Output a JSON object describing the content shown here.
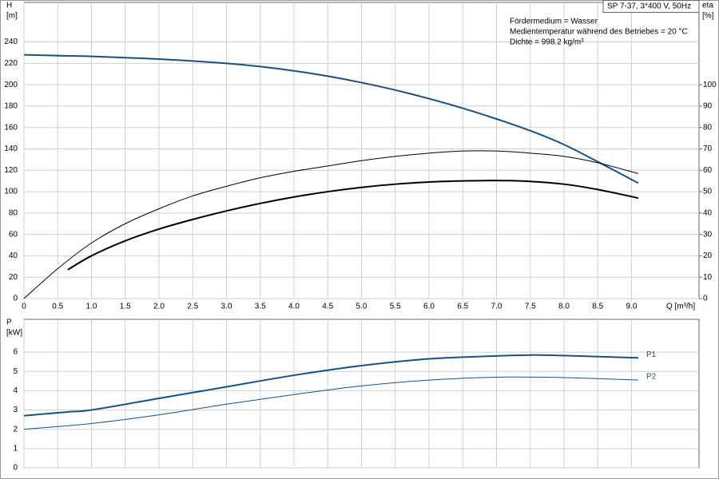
{
  "chart_data": [
    {
      "type": "line",
      "ylabel": [
        "H",
        "[m]"
      ],
      "y2label": [
        "eta",
        "[%]"
      ],
      "xlabel": "Q [m³/h]",
      "info": "SP 7-37, 3*400 V, 50Hz",
      "annotations": [
        "Fördermedium = Wasser",
        "Medientemperatur während des Betriebes = 20 °C",
        "Dichte = 998.2 kg/m³"
      ],
      "xlim": [
        0,
        10
      ],
      "ylim": [
        0,
        277
      ],
      "y2lim": [
        0,
        138.5
      ],
      "xticks": [
        0,
        0.5,
        {
          "value": 1,
          "label": "1.0"
        },
        1.5,
        {
          "value": 2,
          "label": "2.0"
        },
        2.5,
        {
          "value": 3,
          "label": "3.0"
        },
        3.5,
        {
          "value": 4,
          "label": "4.0"
        },
        4.5,
        {
          "value": 5,
          "label": "5.0"
        },
        5.5,
        {
          "value": 6,
          "label": "6.0"
        },
        6.5,
        {
          "value": 7,
          "label": "7.0"
        },
        7.5,
        {
          "value": 8,
          "label": "8.0"
        },
        8.5,
        {
          "value": 9,
          "label": "9.0"
        }
      ],
      "yticks": [
        0,
        20,
        40,
        60,
        80,
        100,
        120,
        140,
        160,
        180,
        200,
        220,
        240
      ],
      "y2ticks": [
        0,
        10,
        20,
        30,
        40,
        50,
        60,
        70,
        80,
        90,
        100
      ],
      "grid": true,
      "series": [
        {
          "color": "#1b4f80",
          "width": 2,
          "x": [
            0,
            0.65,
            1,
            2,
            3,
            3.5,
            4,
            4.5,
            5,
            5.5,
            6,
            6.5,
            7,
            7.5,
            8,
            8.5,
            9.1
          ],
          "values": [
            228,
            227,
            226.5,
            224,
            220,
            217,
            213,
            208,
            202,
            195,
            187,
            178,
            168,
            157,
            144,
            128,
            108
          ]
        },
        {
          "color": "#000000",
          "width": 1,
          "axis": "y2",
          "x": [
            0,
            0.5,
            1,
            1.5,
            2,
            2.5,
            3,
            3.5,
            4,
            4.5,
            5,
            5.5,
            6,
            6.5,
            7,
            7.5,
            8,
            8.5,
            9.1
          ],
          "values": [
            0,
            14,
            26,
            35,
            42,
            48,
            52.5,
            56.5,
            59.5,
            62,
            64.5,
            66.5,
            68,
            69,
            69,
            68,
            66.5,
            63.5,
            58.5
          ]
        },
        {
          "color": "#000000",
          "width": 2,
          "axis": "y2",
          "x": [
            0.65,
            1,
            1.5,
            2,
            2.5,
            3,
            3.5,
            4,
            4.5,
            5,
            5.5,
            6,
            6.5,
            7,
            7.5,
            8,
            8.5,
            9.1
          ],
          "values": [
            13.5,
            20,
            27,
            32.5,
            37,
            41,
            44.5,
            47.5,
            50,
            52,
            53.5,
            54.5,
            55,
            55.2,
            54.8,
            53.5,
            51,
            47
          ]
        }
      ]
    },
    {
      "type": "line",
      "ylabel": [
        "P",
        "[kW]"
      ],
      "xlim": [
        0,
        10
      ],
      "ylim": [
        0,
        7.7
      ],
      "xticks": [
        0,
        0.5,
        1,
        1.5,
        2,
        2.5,
        3,
        3.5,
        4,
        4.5,
        5,
        5.5,
        6,
        6.5,
        7,
        7.5,
        8,
        8.5,
        9
      ],
      "yticks": [
        0,
        1,
        2,
        3,
        4,
        5,
        6
      ],
      "grid": true,
      "series": [
        {
          "name": "P1",
          "color": "#1b4f80",
          "width": 2,
          "x": [
            0,
            0.65,
            1,
            2,
            3,
            4,
            5,
            6,
            7,
            7.5,
            8,
            9.1
          ],
          "values": [
            2.7,
            2.9,
            3.0,
            3.6,
            4.2,
            4.8,
            5.3,
            5.65,
            5.8,
            5.85,
            5.82,
            5.7
          ]
        },
        {
          "name": "P2",
          "color": "#1b4f80",
          "width": 1,
          "x": [
            0,
            1,
            2,
            3,
            4,
            5,
            6,
            7,
            8,
            9.1
          ],
          "values": [
            2.0,
            2.3,
            2.75,
            3.3,
            3.8,
            4.25,
            4.55,
            4.7,
            4.68,
            4.55
          ]
        }
      ]
    }
  ]
}
